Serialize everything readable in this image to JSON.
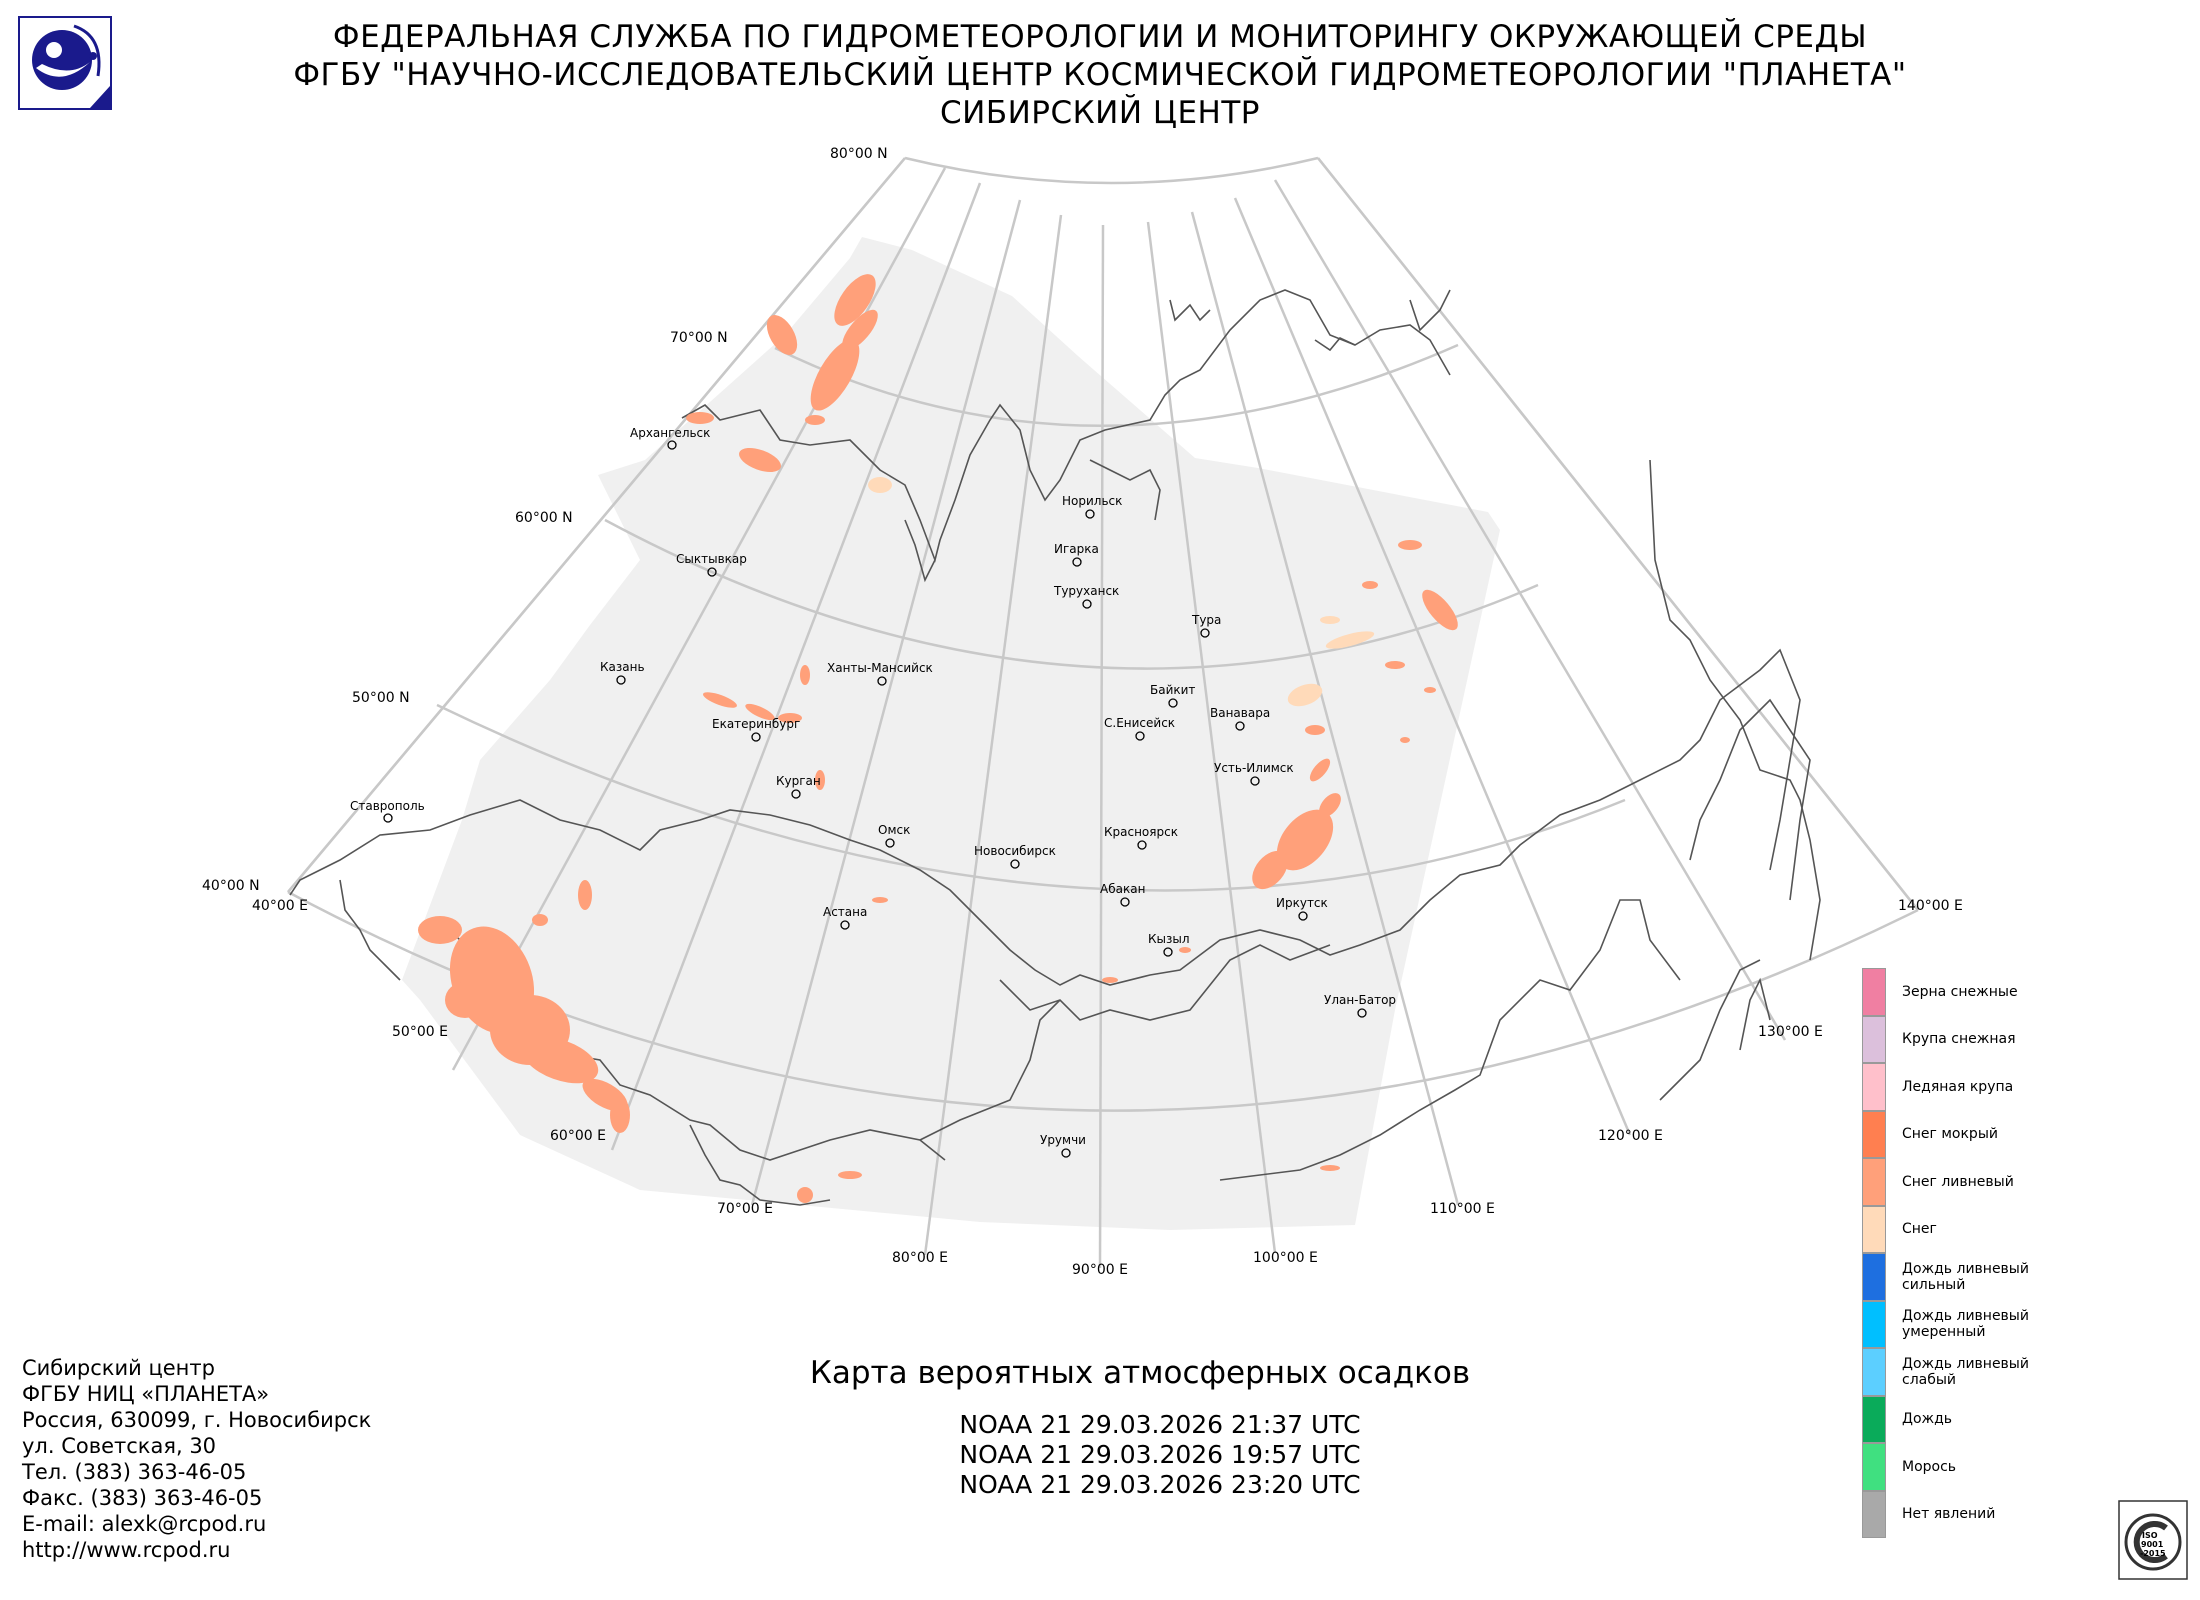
{
  "header": {
    "line1": "ФЕДЕРАЛЬНАЯ СЛУЖБА ПО ГИДРОМЕТЕОРОЛОГИИ И МОНИТОРИНГУ ОКРУЖАЮЩЕЙ СРЕДЫ",
    "line2": "ФГБУ \"НАУЧНО-ИССЛЕДОВАТЕЛЬСКИЙ ЦЕНТР КОСМИЧЕСКОЙ ГИДРОМЕТЕОРОЛОГИИ \"ПЛАНЕТА\"",
    "line3": "СИБИРСКИЙ ЦЕНТР"
  },
  "logo_icon": "planeta-emblem-icon",
  "map": {
    "lat_labels": [
      "80°00 N",
      "70°00 N",
      "60°00 N",
      "50°00 N",
      "40°00 N"
    ],
    "lon_labels": [
      "40°00 E",
      "50°00 E",
      "60°00 E",
      "70°00 E",
      "80°00 E",
      "90°00 E",
      "100°00 E",
      "110°00 E",
      "120°00 E",
      "130°00 E",
      "140°00 E"
    ],
    "cities": [
      {
        "name": "Архангельск"
      },
      {
        "name": "Сыктывкар"
      },
      {
        "name": "Казань"
      },
      {
        "name": "Ставрополь"
      },
      {
        "name": "Екатеринбург"
      },
      {
        "name": "Курган"
      },
      {
        "name": "Ханты-Мансийск"
      },
      {
        "name": "Омск"
      },
      {
        "name": "Астана"
      },
      {
        "name": "Новосибирск"
      },
      {
        "name": "Норильск"
      },
      {
        "name": "Игарка"
      },
      {
        "name": "Туруханск"
      },
      {
        "name": "Тура"
      },
      {
        "name": "Байкит"
      },
      {
        "name": "Ванавара"
      },
      {
        "name": "С.Енисейск"
      },
      {
        "name": "Усть-Илимск"
      },
      {
        "name": "Красноярск"
      },
      {
        "name": "Абакан"
      },
      {
        "name": "Иркутск"
      },
      {
        "name": "Кызыл"
      },
      {
        "name": "Улан-Батор"
      },
      {
        "name": "Урумчи"
      }
    ],
    "colors": {
      "coverage": "#f0f0f0",
      "grid": "#c8c8c8",
      "border": "#555555",
      "snow_shower": "#ffa07a",
      "snow": "#ffdab9"
    }
  },
  "map_title": "Карта вероятных атмосферных осадков",
  "passes": [
    "NOAA 21 29.03.2026  21:37 UTC",
    "NOAA 21 29.03.2026  19:57 UTC",
    "NOAA 21 29.03.2026  23:20 UTC"
  ],
  "address": [
    "Сибирский центр",
    "ФГБУ НИЦ «ПЛАНЕТА»",
    "Россия, 630099, г. Новосибирск",
    "ул. Советская, 30",
    "Тел. (383) 363-46-05",
    "Факс. (383) 363-46-05",
    "E-mail: alexk@rcpod.ru",
    "http://www.rcpod.ru"
  ],
  "legend": [
    {
      "label": "Зерна снежные",
      "color": "#f07fa2"
    },
    {
      "label": "Крупа снежная",
      "color": "#dcc0dc"
    },
    {
      "label": "Ледяная крупа",
      "color": "#ffc0cb"
    },
    {
      "label": "Снег мокрый",
      "color": "#ff7f50"
    },
    {
      "label": "Снег ливневый",
      "color": "#ffa07a"
    },
    {
      "label": "Снег",
      "color": "#ffdab9"
    },
    {
      "label": "Дождь ливневый сильный",
      "color": "#1e6fe0"
    },
    {
      "label": "Дождь ливневый умеренный",
      "color": "#00bfff"
    },
    {
      "label": "Дождь ливневый слабый",
      "color": "#5ccfff"
    },
    {
      "label": "Дождь",
      "color": "#0aab5a"
    },
    {
      "label": "Морось",
      "color": "#40e080"
    },
    {
      "label": "Нет явлений",
      "color": "#a9a9a9"
    }
  ],
  "iso_badge": {
    "line1": "ISO",
    "line2": "9001",
    "line3": "-2015",
    "icon": "iso-certification-icon"
  }
}
